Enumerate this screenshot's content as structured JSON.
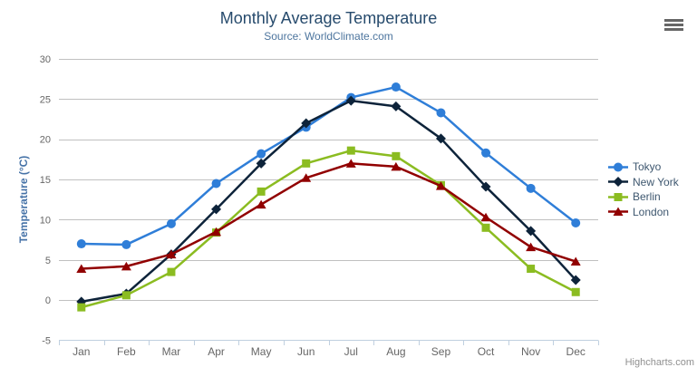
{
  "chart_data": {
    "type": "line",
    "title": "Monthly Average Temperature",
    "subtitle": "Source: WorldClimate.com",
    "xlabel": "",
    "ylabel": "Temperature (°C)",
    "ylim": [
      -5,
      30
    ],
    "ytick_step": 5,
    "grid": true,
    "legend_position": "right",
    "categories": [
      "Jan",
      "Feb",
      "Mar",
      "Apr",
      "May",
      "Jun",
      "Jul",
      "Aug",
      "Sep",
      "Oct",
      "Nov",
      "Dec"
    ],
    "series": [
      {
        "name": "Tokyo",
        "color": "#2f7ed8",
        "marker": "circle",
        "values": [
          7.0,
          6.9,
          9.5,
          14.5,
          18.2,
          21.5,
          25.2,
          26.5,
          23.3,
          18.3,
          13.9,
          9.6
        ]
      },
      {
        "name": "New York",
        "color": "#0d233a",
        "marker": "diamond",
        "values": [
          -0.2,
          0.8,
          5.7,
          11.3,
          17.0,
          22.0,
          24.8,
          24.1,
          20.1,
          14.1,
          8.6,
          2.5
        ]
      },
      {
        "name": "Berlin",
        "color": "#8bbc21",
        "marker": "square",
        "values": [
          -0.9,
          0.6,
          3.5,
          8.4,
          13.5,
          17.0,
          18.6,
          17.9,
          14.3,
          9.0,
          3.9,
          1.0
        ]
      },
      {
        "name": "London",
        "color": "#910000",
        "marker": "triangle",
        "values": [
          3.9,
          4.2,
          5.7,
          8.5,
          11.9,
          15.2,
          17.0,
          16.6,
          14.2,
          10.3,
          6.6,
          4.8
        ]
      }
    ]
  },
  "credits": "Highcharts.com",
  "colors": {
    "title": "#274b6d",
    "subtitle": "#4d759e",
    "grid": "#c0c0c0",
    "axis_line": "#c0d0e0",
    "axis_label": "#666666",
    "axis_title": "#4572a7",
    "legend_text": "#3e576f",
    "credits": "#909090",
    "menu_icon": "#666666"
  }
}
